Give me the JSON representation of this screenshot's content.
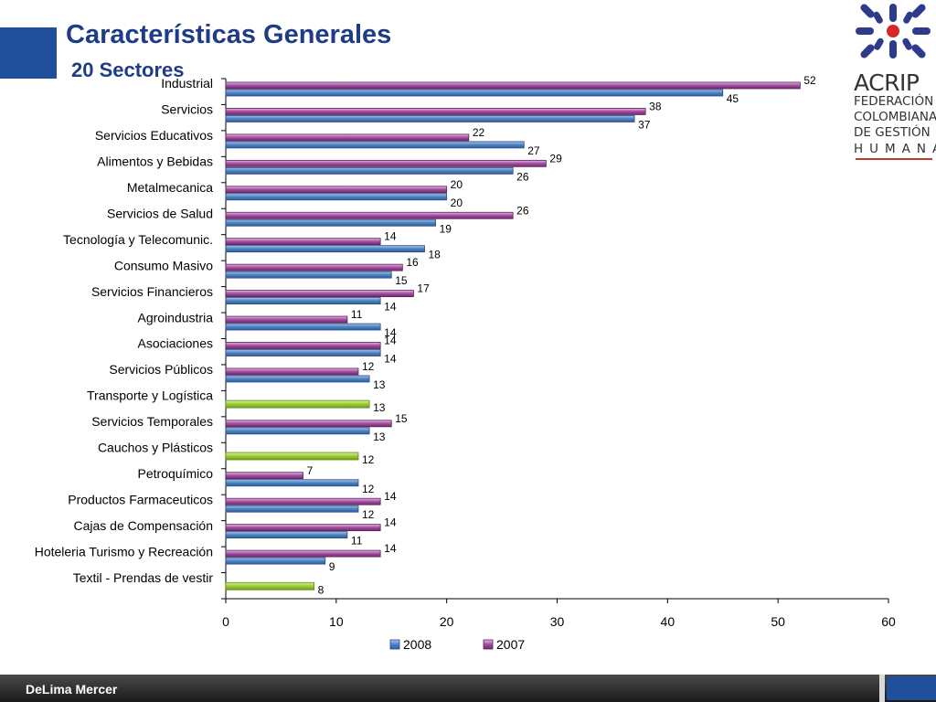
{
  "header": {
    "title": "Características Generales",
    "subtitle": "20 Sectores"
  },
  "logo": {
    "name": "ACRIP",
    "org_lines": [
      "FEDERACIÓN",
      "COLOMBIANA",
      "DE GESTIÓN"
    ],
    "org_last": "HUMANA"
  },
  "footer": {
    "text": "DeLima Mercer"
  },
  "colors": {
    "title": "#1f3c88",
    "series_2008": "#4f81bd",
    "series_2007": "#a14e9f",
    "single_bar": "#9acd32",
    "brand_blue": "#1f4e9a"
  },
  "chart_data": {
    "type": "bar",
    "orientation": "horizontal",
    "categories": [
      "Industrial",
      "Servicios",
      "Servicios Educativos",
      "Alimentos y Bebidas",
      "Metalmecanica",
      "Servicios de Salud",
      "Tecnología y Telecomunic.",
      "Consumo Masivo",
      "Servicios Financieros",
      "Agroindustria",
      "Asociaciones",
      "Servicios Públicos",
      "Transporte y Logística",
      "Servicios Temporales",
      "Cauchos y Plásticos",
      "Petroquímico",
      "Productos Farmaceuticos",
      "Cajas de Compensación",
      "Hoteleria Turismo y Recreación",
      "Textil - Prendas de vestir"
    ],
    "series": [
      {
        "name": "2008",
        "values": [
          45,
          37,
          27,
          26,
          20,
          19,
          18,
          15,
          14,
          14,
          14,
          13,
          13,
          13,
          12,
          12,
          12,
          11,
          9,
          8
        ]
      },
      {
        "name": "2007",
        "values": [
          52,
          38,
          22,
          29,
          20,
          26,
          14,
          16,
          17,
          11,
          14,
          12,
          null,
          15,
          null,
          7,
          14,
          14,
          14,
          null
        ]
      }
    ],
    "xlim": [
      0,
      60
    ],
    "xticks": [
      0,
      10,
      20,
      30,
      40,
      50,
      60
    ],
    "xlabel": "",
    "ylabel": "",
    "legend": "bottom",
    "grid": false,
    "note": "Sectors without a 2007 value are drawn as a single green bar."
  }
}
